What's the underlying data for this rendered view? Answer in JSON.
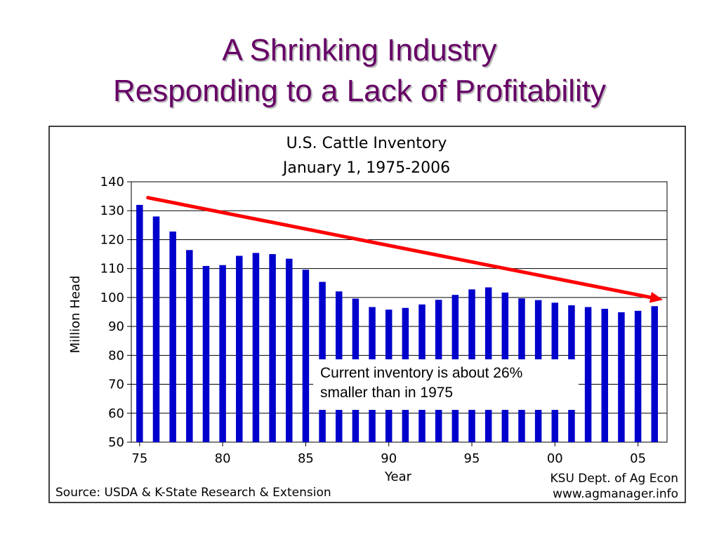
{
  "slide": {
    "title_line_1": "A Shrinking Industry",
    "title_line_2": "Responding to a Lack of Profitability"
  },
  "callout": {
    "line_1": "Current inventory is about 26%",
    "line_2": "smaller than in 1975"
  },
  "footer": {
    "source": "Source:  USDA & K-State Research & Extension",
    "credit_line_1": "KSU Dept. of Ag Econ",
    "credit_line_2": "www.agmanager.info"
  },
  "colors": {
    "title": "#660066",
    "bars": "#0000cc",
    "trend_arrow": "#ff0000"
  },
  "chart_data": {
    "type": "bar",
    "title": "U.S. Cattle Inventory",
    "subtitle": "January 1, 1975-2006",
    "xlabel": "Year",
    "ylabel": "Million Head",
    "ylim": [
      50,
      140
    ],
    "y_ticks": [
      50,
      60,
      70,
      80,
      90,
      100,
      110,
      120,
      130,
      140
    ],
    "x_tick_labels": [
      "75",
      "80",
      "85",
      "90",
      "95",
      "00",
      "05"
    ],
    "x_tick_years": [
      1975,
      1980,
      1985,
      1990,
      1995,
      2000,
      2005
    ],
    "grid": true,
    "categories": [
      1975,
      1976,
      1977,
      1978,
      1979,
      1980,
      1981,
      1982,
      1983,
      1984,
      1985,
      1986,
      1987,
      1988,
      1989,
      1990,
      1991,
      1992,
      1993,
      1994,
      1995,
      1996,
      1997,
      1998,
      1999,
      2000,
      2001,
      2002,
      2003,
      2004,
      2005,
      2006
    ],
    "values": [
      132.0,
      128.0,
      122.8,
      116.4,
      110.9,
      111.2,
      114.4,
      115.4,
      115.0,
      113.4,
      109.6,
      105.4,
      102.1,
      99.6,
      96.7,
      95.8,
      96.4,
      97.6,
      99.2,
      100.9,
      102.8,
      103.5,
      101.7,
      99.7,
      99.1,
      98.2,
      97.3,
      96.7,
      96.1,
      94.9,
      95.4,
      97.0
    ],
    "trend_arrow": {
      "from_year": 1975.5,
      "from_value": 134.5,
      "to_year": 2006.5,
      "to_value": 99.2
    }
  }
}
